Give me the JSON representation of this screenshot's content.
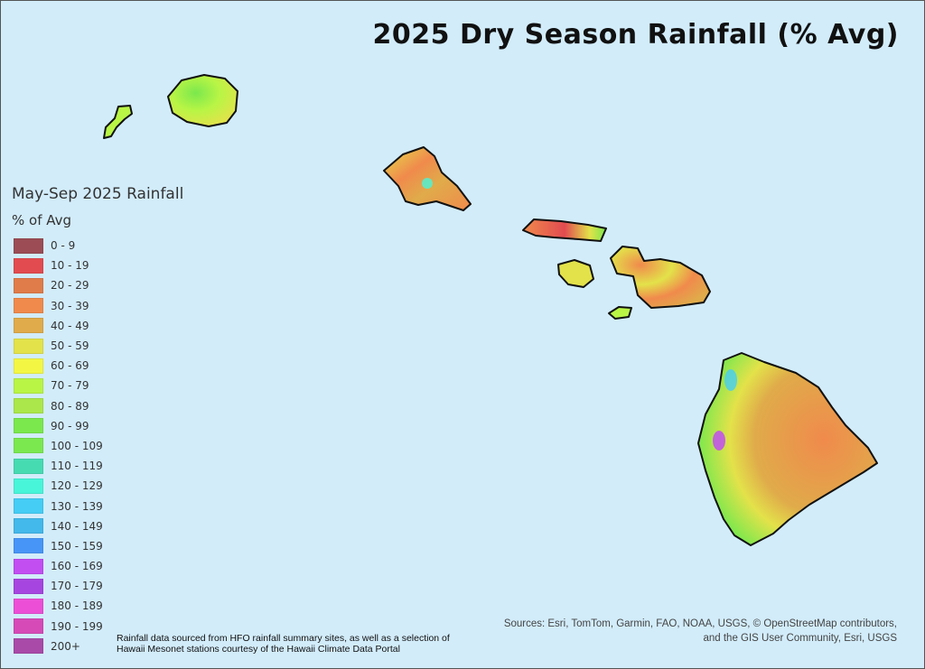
{
  "title": "2025 Dry Season Rainfall (% Avg)",
  "legend": {
    "title": "May-Sep 2025 Rainfall",
    "subtitle": "% of Avg",
    "classes": [
      {
        "label": "0 - 9",
        "color": "#9b4c55"
      },
      {
        "label": "10 - 19",
        "color": "#e24b50"
      },
      {
        "label": "20 - 29",
        "color": "#e07c4a"
      },
      {
        "label": "30 - 39",
        "color": "#f08a4c"
      },
      {
        "label": "40 - 49",
        "color": "#e0ab4a"
      },
      {
        "label": "50 - 59",
        "color": "#e3e24a"
      },
      {
        "label": "60 - 69",
        "color": "#f3f744"
      },
      {
        "label": "70 - 79",
        "color": "#b9f545"
      },
      {
        "label": "80 - 89",
        "color": "#abe74a"
      },
      {
        "label": "90 - 99",
        "color": "#7be84d"
      },
      {
        "label": "100 - 109",
        "color": "#7be850"
      },
      {
        "label": "110 - 119",
        "color": "#47dbb2"
      },
      {
        "label": "120 - 129",
        "color": "#48f5d8"
      },
      {
        "label": "130 - 139",
        "color": "#45cdf5"
      },
      {
        "label": "140 - 149",
        "color": "#43b8ea"
      },
      {
        "label": "150 - 159",
        "color": "#4795f7"
      },
      {
        "label": "160 - 169",
        "color": "#c24ef2"
      },
      {
        "label": "170 - 179",
        "color": "#a745e0"
      },
      {
        "label": "180 - 189",
        "color": "#ec4fd6"
      },
      {
        "label": "190 - 199",
        "color": "#d64ab8"
      },
      {
        "label": "200+",
        "color": "#a94aa8"
      }
    ]
  },
  "credit": "Rainfall data sourced from HFO rainfall summary sites, as well as a selection of Hawaii Mesonet stations courtesy of the Hawaii Climate Data Portal",
  "sources": {
    "line1": "Sources: Esri, TomTom, Garmin, FAO, NOAA, USGS, © OpenStreetMap contributors,",
    "line2": "and the GIS User Community, Esri, USGS"
  }
}
